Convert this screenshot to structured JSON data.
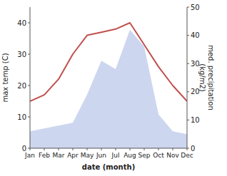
{
  "chart_data": {
    "type": "line",
    "categories": [
      "Jan",
      "Feb",
      "Mar",
      "Apr",
      "May",
      "Jun",
      "Jul",
      "Aug",
      "Sep",
      "Oct",
      "Nov",
      "Dec"
    ],
    "series": [
      {
        "type": "line",
        "color": "#c0504d",
        "values": [
          15,
          17,
          22,
          30,
          36,
          37,
          38,
          40,
          33,
          26,
          20,
          15
        ]
      },
      {
        "type": "area",
        "color": "#b8c4e8",
        "axis": "y2",
        "values": [
          6,
          7,
          8,
          9,
          19,
          31,
          28,
          42,
          36,
          12,
          6,
          5
        ]
      }
    ],
    "xlabel": "date (month)",
    "ylabel": "max temp (C)",
    "y2label": "med. precipitation\n(kg/m2)",
    "ylim": [
      0,
      45
    ],
    "yticks": [
      0,
      10,
      20,
      30,
      40
    ],
    "y2lim": [
      0,
      50
    ],
    "y2ticks": [
      0,
      10,
      20,
      30,
      40,
      50
    ],
    "grid": false
  }
}
